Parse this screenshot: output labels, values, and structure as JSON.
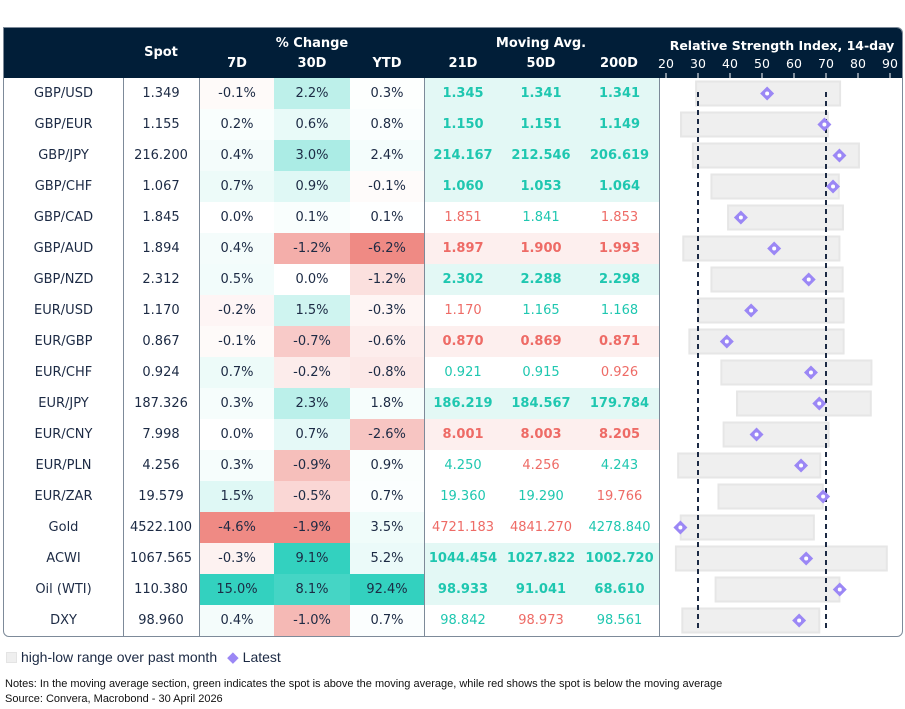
{
  "header": {
    "spot": "Spot",
    "pct_change": "% Change",
    "d7": "7D",
    "d30": "30D",
    "ytd": "YTD",
    "moving_avg": "Moving Avg.",
    "ma21": "21D",
    "ma50": "50D",
    "ma200": "200D",
    "rsi_title": "Relative Strength Index, 14-day",
    "rsi_ticks": [
      "20",
      "30",
      "40",
      "50",
      "60",
      "70",
      "80",
      "90"
    ]
  },
  "colors": {
    "header_bg": "#011e38",
    "text": "#1c2a44",
    "above": "#1fc7b0",
    "below": "#ee6b66",
    "heat_green": "#33d1bf",
    "heat_red": "#ef8a84",
    "ma_green_bg": "#e3f8f5",
    "ma_red_bg": "#fdefee",
    "range_bar": "#efefef",
    "latest_marker": "#9b87f5"
  },
  "rsi_thresholds": [
    30,
    70
  ],
  "rows": [
    {
      "name": "GBP/USD",
      "spot": "1.349",
      "d7": "-0.1%",
      "d30": "2.2%",
      "ytd": "0.3%",
      "ma21": "1.345",
      "ma50": "1.341",
      "ma200": "1.341",
      "rsi_low": 29.4,
      "rsi_high": 74.4,
      "rsi": 51.6
    },
    {
      "name": "GBP/EUR",
      "spot": "1.155",
      "d7": "0.2%",
      "d30": "0.6%",
      "ytd": "0.8%",
      "ma21": "1.150",
      "ma50": "1.151",
      "ma200": "1.149",
      "rsi_low": 24.7,
      "rsi_high": 70.6,
      "rsi": 69.5
    },
    {
      "name": "GBP/JPY",
      "spot": "216.200",
      "d7": "0.4%",
      "d30": "3.0%",
      "ytd": "2.4%",
      "ma21": "214.167",
      "ma50": "212.546",
      "ma200": "206.619",
      "rsi_low": 28.4,
      "rsi_high": 80.3,
      "rsi": 74.2
    },
    {
      "name": "GBP/CHF",
      "spot": "1.067",
      "d7": "0.7%",
      "d30": "0.9%",
      "ytd": "-0.1%",
      "ma21": "1.060",
      "ma50": "1.053",
      "ma200": "1.064",
      "rsi_low": 34.2,
      "rsi_high": 74.0,
      "rsi": 72.2
    },
    {
      "name": "GBP/CAD",
      "spot": "1.845",
      "d7": "0.0%",
      "d30": "0.1%",
      "ytd": "0.1%",
      "ma21": "1.851",
      "ma50": "1.841",
      "ma200": "1.853",
      "rsi_low": 39.4,
      "rsi_high": 75.3,
      "rsi": 43.4
    },
    {
      "name": "GBP/AUD",
      "spot": "1.894",
      "d7": "0.4%",
      "d30": "-1.2%",
      "ytd": "-6.2%",
      "ma21": "1.897",
      "ma50": "1.900",
      "ma200": "1.993",
      "rsi_low": 25.4,
      "rsi_high": 74.2,
      "rsi": 53.8
    },
    {
      "name": "GBP/NZD",
      "spot": "2.312",
      "d7": "0.5%",
      "d30": "0.0%",
      "ytd": "-1.2%",
      "ma21": "2.302",
      "ma50": "2.288",
      "ma200": "2.298",
      "rsi_low": 34.2,
      "rsi_high": 75.2,
      "rsi": 64.6
    },
    {
      "name": "EUR/USD",
      "spot": "1.170",
      "d7": "-0.2%",
      "d30": "1.5%",
      "ytd": "-0.3%",
      "ma21": "1.170",
      "ma50": "1.165",
      "ma200": "1.168",
      "rsi_low": 30.1,
      "rsi_high": 75.5,
      "rsi": 46.6
    },
    {
      "name": "EUR/GBP",
      "spot": "0.867",
      "d7": "-0.1%",
      "d30": "-0.7%",
      "ytd": "-0.6%",
      "ma21": "0.870",
      "ma50": "0.869",
      "ma200": "0.871",
      "rsi_low": 27.3,
      "rsi_high": 75.5,
      "rsi": 39.0
    },
    {
      "name": "EUR/CHF",
      "spot": "0.924",
      "d7": "0.7%",
      "d30": "-0.2%",
      "ytd": "-0.8%",
      "ma21": "0.921",
      "ma50": "0.915",
      "ma200": "0.926",
      "rsi_low": 37.3,
      "rsi_high": 84.2,
      "rsi": 65.3
    },
    {
      "name": "EUR/JPY",
      "spot": "187.326",
      "d7": "0.3%",
      "d30": "2.3%",
      "ytd": "1.8%",
      "ma21": "186.219",
      "ma50": "184.567",
      "ma200": "179.784",
      "rsi_low": 42.2,
      "rsi_high": 84.0,
      "rsi": 67.9
    },
    {
      "name": "EUR/CNY",
      "spot": "7.998",
      "d7": "0.0%",
      "d30": "0.7%",
      "ytd": "-2.6%",
      "ma21": "8.001",
      "ma50": "8.003",
      "ma200": "8.205",
      "rsi_low": 38.0,
      "rsi_high": 70.8,
      "rsi": 48.3
    },
    {
      "name": "EUR/PLN",
      "spot": "4.256",
      "d7": "0.3%",
      "d30": "-0.9%",
      "ytd": "0.9%",
      "ma21": "4.250",
      "ma50": "4.256",
      "ma200": "4.243",
      "rsi_low": 23.8,
      "rsi_high": 68.2,
      "rsi": 62.2
    },
    {
      "name": "EUR/ZAR",
      "spot": "19.579",
      "d7": "1.5%",
      "d30": "-0.5%",
      "ytd": "0.7%",
      "ma21": "19.360",
      "ma50": "19.290",
      "ma200": "19.766",
      "rsi_low": 36.4,
      "rsi_high": 69.0,
      "rsi": 69.1
    },
    {
      "name": "Gold",
      "spot": "4522.100",
      "d7": "-4.6%",
      "d30": "-1.9%",
      "ytd": "3.5%",
      "ma21": "4721.183",
      "ma50": "4841.270",
      "ma200": "4278.840",
      "rsi_low": 24.6,
      "rsi_high": 66.2,
      "rsi": 24.5
    },
    {
      "name": "ACWI",
      "spot": "1067.565",
      "d7": "-0.3%",
      "d30": "9.1%",
      "ytd": "5.2%",
      "ma21": "1044.454",
      "ma50": "1027.822",
      "ma200": "1002.720",
      "rsi_low": 23.1,
      "rsi_high": 89.0,
      "rsi": 63.8
    },
    {
      "name": "Oil (WTI)",
      "spot": "110.380",
      "d7": "15.0%",
      "d30": "8.1%",
      "ytd": "92.4%",
      "ma21": "98.933",
      "ma50": "91.041",
      "ma200": "68.610",
      "rsi_low": 35.5,
      "rsi_high": 74.2,
      "rsi": 74.3
    },
    {
      "name": "DXY",
      "spot": "98.960",
      "d7": "0.4%",
      "d30": "-1.0%",
      "ytd": "0.7%",
      "ma21": "98.842",
      "ma50": "98.973",
      "ma200": "98.561",
      "rsi_low": 25.1,
      "rsi_high": 67.9,
      "rsi": 61.6
    }
  ],
  "legend": {
    "range": "high-low range over past month",
    "latest": "Latest"
  },
  "notes": "Notes: In the moving average section, green indicates the spot is above the moving average, while red shows the spot is below the moving average",
  "source": "Source: Convera, Macrobond - 30 April 2026"
}
